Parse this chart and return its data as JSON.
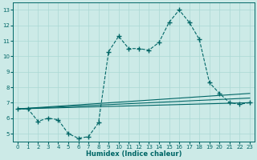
{
  "title": "",
  "xlabel": "Humidex (Indice chaleur)",
  "background_color": "#cceae7",
  "line_color": "#006666",
  "xlim": [
    -0.5,
    23.5
  ],
  "ylim": [
    4.5,
    13.5
  ],
  "xticks": [
    0,
    1,
    2,
    3,
    4,
    5,
    6,
    7,
    8,
    9,
    10,
    11,
    12,
    13,
    14,
    15,
    16,
    17,
    18,
    19,
    20,
    21,
    22,
    23
  ],
  "yticks": [
    5,
    6,
    7,
    8,
    9,
    10,
    11,
    12,
    13
  ],
  "grid_color": "#aad8d4",
  "series": [
    {
      "x": [
        0,
        1,
        2,
        3,
        4,
        5,
        6,
        7,
        8,
        9,
        10,
        11,
        12,
        13,
        14,
        15,
        16,
        17,
        18,
        19,
        20,
        21,
        22,
        23
      ],
      "y": [
        6.6,
        6.6,
        5.8,
        6.0,
        5.9,
        5.0,
        4.7,
        4.8,
        5.7,
        10.3,
        11.3,
        10.5,
        10.5,
        10.4,
        10.9,
        12.2,
        13.0,
        12.2,
        11.1,
        8.3,
        7.6,
        7.0,
        6.9,
        7.0
      ],
      "marker": "+",
      "markersize": 4,
      "linewidth": 0.8,
      "linestyle": "--"
    },
    {
      "x": [
        0,
        23
      ],
      "y": [
        6.6,
        7.0
      ],
      "marker": null,
      "markersize": 0,
      "linewidth": 0.8,
      "linestyle": "-"
    },
    {
      "x": [
        0,
        23
      ],
      "y": [
        6.6,
        7.3
      ],
      "marker": null,
      "markersize": 0,
      "linewidth": 0.8,
      "linestyle": "-"
    },
    {
      "x": [
        0,
        23
      ],
      "y": [
        6.6,
        7.6
      ],
      "marker": null,
      "markersize": 0,
      "linewidth": 0.8,
      "linestyle": "-"
    }
  ]
}
